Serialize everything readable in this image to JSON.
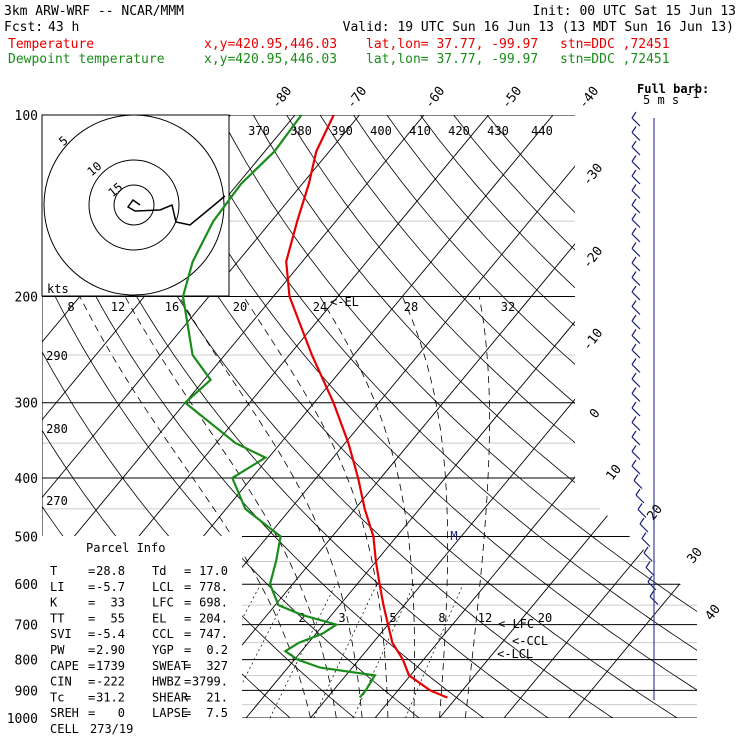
{
  "header": {
    "model": "3km ARW-WRF -- NCAR/MMM",
    "init": "Init: 00 UTC Sat 15 Jun 13",
    "fcst_label": "Fcst:",
    "fcst_hours": "43 h",
    "valid": "Valid: 19 UTC Sun 16 Jun 13 (13 MDT Sun 16 Jun 13)",
    "temperature_label": "Temperature",
    "dewpoint_label": "Dewpoint temperature",
    "xy": "x,y=420.95,446.03",
    "latlon": "lat,lon= 37.77, -99.97",
    "station": "stn=DDC ,72451"
  },
  "colors": {
    "temperature": "#e60000",
    "dewpoint": "#198c19",
    "navy": "#1a1f7a"
  },
  "chart_data": {
    "type": "line",
    "subtype": "skew-t log-p",
    "y_axis": {
      "scale": "log",
      "unit": "hPa",
      "range": [
        1000,
        100
      ],
      "ticks": [
        100,
        200,
        300,
        400,
        500,
        600,
        700,
        800,
        900,
        1000
      ]
    },
    "isotherm_labels": [
      -80,
      -70,
      -60,
      -50,
      -40,
      -30,
      -20,
      -10,
      0,
      10,
      20,
      30,
      40
    ],
    "theta_labels": [
      370,
      380,
      390,
      400,
      410,
      420,
      430,
      440,
      290,
      280,
      270
    ],
    "mixing_ratio_labels": [
      2,
      3,
      5,
      8,
      12,
      20
    ],
    "series": [
      {
        "name": "Temperature",
        "points": [
          [
            925,
            28.6
          ],
          [
            900,
            25.0
          ],
          [
            850,
            19.8
          ],
          [
            800,
            16.8
          ],
          [
            750,
            13.0
          ],
          [
            700,
            10.0
          ],
          [
            650,
            6.8
          ],
          [
            600,
            3.5
          ],
          [
            550,
            0.0
          ],
          [
            500,
            -3.6
          ],
          [
            450,
            -8.5
          ],
          [
            400,
            -13.5
          ],
          [
            350,
            -19.5
          ],
          [
            300,
            -27.0
          ],
          [
            250,
            -36.5
          ],
          [
            200,
            -47.5
          ],
          [
            175,
            -52.5
          ],
          [
            150,
            -56.0
          ],
          [
            130,
            -59.0
          ],
          [
            115,
            -62.0
          ],
          [
            100,
            -64.0
          ]
        ]
      },
      {
        "name": "Dewpoint temperature",
        "points": [
          [
            925,
            15.0
          ],
          [
            900,
            15.0
          ],
          [
            850,
            14.5
          ],
          [
            825,
            5.0
          ],
          [
            800,
            0.5
          ],
          [
            775,
            -2.5
          ],
          [
            750,
            -1.5
          ],
          [
            725,
            1.0
          ],
          [
            700,
            2.0
          ],
          [
            675,
            -4.5
          ],
          [
            650,
            -9.5
          ],
          [
            600,
            -13.5
          ],
          [
            550,
            -15.5
          ],
          [
            500,
            -18.0
          ],
          [
            450,
            -27.0
          ],
          [
            400,
            -33.0
          ],
          [
            370,
            -30.5
          ],
          [
            350,
            -37.0
          ],
          [
            300,
            -50.0
          ],
          [
            275,
            -49.0
          ],
          [
            250,
            -55.0
          ],
          [
            200,
            -64.0
          ],
          [
            175,
            -67.0
          ],
          [
            150,
            -69.0
          ],
          [
            130,
            -69.5
          ],
          [
            115,
            -68.5
          ],
          [
            100,
            -69.0
          ]
        ]
      }
    ],
    "level_labels": [
      {
        "label": "<-EL",
        "p": 204
      },
      {
        "label": "<-LFC",
        "p": 698
      },
      {
        "label": "<-CCL",
        "p": 747
      },
      {
        "label": "<-LCL",
        "p": 778
      }
    ],
    "hodograph": {
      "units_label": "kts",
      "ring_labels": [
        "5",
        "10",
        "15"
      ],
      "x_tick_labels": [
        "8",
        "12",
        "16",
        "20",
        "24",
        "28",
        "32"
      ],
      "motion_marker": "M"
    },
    "wind_barb_legend": {
      "title": "Full barb:",
      "value": "5 m s",
      "exponent": "-1"
    }
  },
  "parcel_info": {
    "title": "Parcel Info",
    "rows": [
      [
        {
          "k": "T",
          "v": "28.8"
        },
        {
          "k": "Td",
          "v": "17.0"
        }
      ],
      [
        {
          "k": "LI",
          "v": "-5.7"
        },
        {
          "k": "LCL",
          "v": "778."
        }
      ],
      [
        {
          "k": "K",
          "v": "33"
        },
        {
          "k": "LFC",
          "v": "698."
        }
      ],
      [
        {
          "k": "TT",
          "v": "55"
        },
        {
          "k": "EL",
          "v": "204."
        }
      ],
      [
        {
          "k": "SVI",
          "v": "-5.4"
        },
        {
          "k": "CCL",
          "v": "747."
        }
      ],
      [
        {
          "k": "PW",
          "v": "2.90"
        },
        {
          "k": "YGP",
          "v": "0.2"
        }
      ],
      [
        {
          "k": "CAPE",
          "v": "1739"
        },
        {
          "k": "SWEAT",
          "v": "327"
        }
      ],
      [
        {
          "k": "CIN",
          "v": "-222"
        },
        {
          "k": "HWBZ",
          "v": "3799."
        }
      ],
      [
        {
          "k": "Tc",
          "v": "31.2"
        },
        {
          "k": "SHEAR",
          "v": "21."
        }
      ],
      [
        {
          "k": "SREH",
          "v": "0"
        },
        {
          "k": "LAPSE",
          "v": "7.5"
        }
      ]
    ],
    "cell_label": "CELL",
    "cell_value": "273/19"
  }
}
